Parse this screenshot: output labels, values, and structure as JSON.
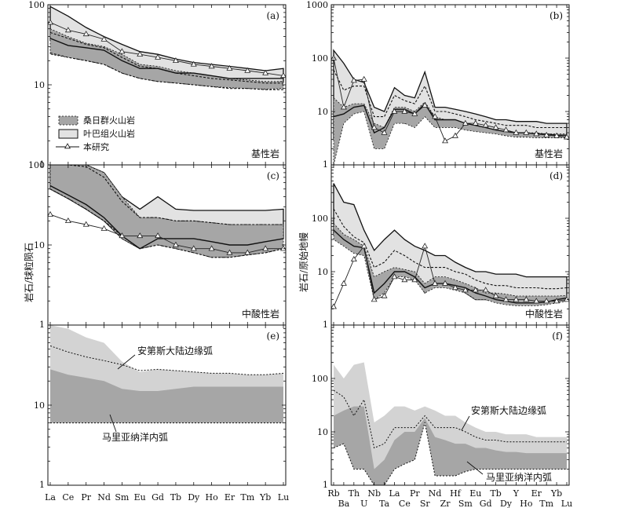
{
  "figure": {
    "y_axis_title_left": "岩石/球粒陨石",
    "y_axis_title_right": "岩石/原始地幔",
    "ree_elements": [
      "La",
      "Ce",
      "Pr",
      "Nd",
      "Sm",
      "Eu",
      "Gd",
      "Tb",
      "Dy",
      "Ho",
      "Er",
      "Tm",
      "Yb",
      "Lu"
    ],
    "spider_elements": [
      "Rb",
      "Ba",
      "Th",
      "U",
      "Nb",
      "Ta",
      "La",
      "Ce",
      "Pr",
      "Sr",
      "Nd",
      "Zr",
      "Hf",
      "Sm",
      "Eu",
      "Gd",
      "Tb",
      "Dy",
      "Y",
      "Ho",
      "Er",
      "Tm",
      "Yb",
      "Lu"
    ],
    "legend": {
      "sangri": "桑日群火山岩",
      "yeba": "叶巴组火山岩",
      "this_study": "本研究"
    },
    "colors": {
      "dark_field": "#a6a6a6",
      "light_field": "#e2e2e2",
      "line": "#111111"
    }
  },
  "chart_data": [
    {
      "panel": "(a)",
      "type": "line",
      "subtitle": "基性岩",
      "y_scale": "log",
      "ylim": [
        1,
        100
      ],
      "y_ticks": [
        "100",
        "10",
        "1"
      ],
      "yeba_band": {
        "upper": [
          95,
          72,
          52,
          40,
          32,
          26,
          24,
          21,
          19,
          18,
          17,
          16,
          15,
          16
        ],
        "lower": [
          36,
          30,
          26,
          23,
          17,
          15,
          14,
          13,
          12,
          12,
          11,
          11,
          10.5,
          11
        ]
      },
      "sangri_band": {
        "upper": [
          50,
          40,
          33,
          30,
          24,
          18,
          17,
          15,
          14,
          13,
          12,
          11.5,
          11,
          11
        ],
        "lower": [
          24,
          22,
          20,
          18,
          14,
          12,
          11,
          10.5,
          10,
          9.5,
          9.2,
          9,
          8.8,
          9
        ]
      },
      "sangri_dashed": [
        [
          45,
          38,
          32,
          29,
          22,
          17,
          16,
          14,
          13,
          12,
          11.5,
          11,
          10.5,
          10.5
        ],
        [
          25,
          22,
          20,
          18,
          14,
          12,
          11,
          10.5,
          10,
          9.5,
          9,
          9,
          8.7,
          8.7
        ]
      ],
      "yeba_solid": [
        [
          38,
          31,
          29,
          27,
          20,
          16,
          16,
          14,
          14,
          13,
          12,
          12,
          12,
          12
        ]
      ],
      "this_study": [
        60,
        48,
        43,
        37,
        26,
        24,
        22,
        20,
        18,
        17,
        16,
        15,
        14,
        13
      ]
    },
    {
      "panel": "(b)",
      "type": "line",
      "subtitle": "基性岩",
      "y_scale": "log",
      "ylim": [
        1,
        1000
      ],
      "y_ticks": [
        "1000",
        "100",
        "10",
        "1"
      ],
      "yeba_band": {
        "upper": [
          140,
          80,
          40,
          35,
          12,
          10,
          28,
          20,
          18,
          55,
          12,
          12,
          11,
          10,
          9,
          8,
          7,
          7,
          6.5,
          6.5,
          6.5,
          6,
          6,
          6
        ],
        "lower": [
          3,
          7,
          10,
          12,
          3,
          3.5,
          7,
          6,
          6,
          9,
          6,
          6,
          6,
          5.5,
          5,
          4.5,
          4.5,
          4,
          3.8,
          3.8,
          3.6,
          3.6,
          3.6,
          3.6
        ]
      },
      "sangri_band": {
        "upper": [
          18,
          12,
          14,
          14,
          6,
          5,
          12,
          12,
          10,
          15,
          8,
          7,
          7,
          6,
          5.5,
          5,
          4.5,
          4.3,
          4,
          4,
          4,
          3.8,
          3.8,
          3.8
        ],
        "lower": [
          1,
          6,
          9,
          10,
          2,
          2,
          6,
          6,
          5,
          8,
          5,
          5,
          5,
          4.5,
          4.2,
          4,
          3.8,
          3.5,
          3.3,
          3.3,
          3.2,
          3.2,
          3.2,
          3.2
        ]
      },
      "sangri_dashed": [
        [
          60,
          25,
          30,
          30,
          8,
          8,
          20,
          16,
          14,
          30,
          10,
          10,
          9,
          8,
          7,
          6.5,
          6,
          5.5,
          5.5,
          5.5,
          5,
          5,
          5,
          5
        ]
      ],
      "yeba_solid": [
        [
          8,
          9,
          12,
          13,
          4,
          5,
          11,
          11,
          9,
          14,
          7,
          7,
          7,
          6,
          5.5,
          5,
          4.5,
          4.2,
          4,
          4,
          3.8,
          3.8,
          3.6,
          3.6
        ]
      ],
      "this_study": [
        100,
        12,
        38,
        40,
        5,
        4,
        10,
        10,
        9,
        13,
        8,
        2.8,
        3.5,
        6,
        6,
        5.5,
        5,
        4.5,
        4,
        4,
        3.8,
        3.6,
        3.5,
        3.3
      ]
    },
    {
      "panel": "(c)",
      "type": "line",
      "subtitle": "中酸性岩",
      "y_scale": "log",
      "ylim": [
        1,
        100
      ],
      "y_ticks": [
        "100",
        "10",
        "1"
      ],
      "yeba_band": {
        "upper": [
          100,
          100,
          100,
          80,
          40,
          28,
          40,
          28,
          27,
          27,
          27,
          27,
          27,
          28
        ],
        "lower": [
          50,
          38,
          28,
          20,
          12,
          9,
          11,
          10,
          10,
          10,
          10,
          10,
          11,
          12
        ]
      },
      "sangri_band": {
        "upper": [
          100,
          100,
          100,
          80,
          40,
          22,
          22,
          20,
          20,
          19,
          18,
          18,
          18,
          18
        ],
        "lower": [
          50,
          38,
          28,
          20,
          12,
          9,
          10,
          9,
          8,
          7,
          7,
          7.5,
          8,
          9
        ]
      },
      "sangri_dashed": [
        [
          100,
          100,
          95,
          70,
          35,
          22,
          22,
          20,
          20,
          19,
          18,
          18,
          18,
          18
        ],
        [
          50,
          38,
          28,
          20,
          13,
          9,
          10,
          9,
          8,
          7,
          7,
          7.5,
          8,
          9
        ]
      ],
      "yeba_solid": [
        [
          55,
          42,
          32,
          22,
          13,
          9,
          12,
          12,
          12,
          11,
          10,
          10,
          11,
          12
        ]
      ],
      "this_study": [
        24,
        20,
        18,
        16,
        13,
        13,
        13,
        10,
        9,
        9,
        8,
        8,
        9,
        9
      ]
    },
    {
      "panel": "(d)",
      "type": "line",
      "subtitle": "中酸性岩",
      "y_scale": "log",
      "ylim": [
        1,
        1000
      ],
      "y_ticks": [
        "100",
        "10",
        "1"
      ],
      "yeba_band": {
        "upper": [
          450,
          200,
          180,
          60,
          25,
          40,
          60,
          40,
          30,
          25,
          20,
          20,
          15,
          12,
          10,
          10,
          9,
          9,
          9,
          8,
          8,
          8,
          8,
          8
        ],
        "lower": [
          50,
          35,
          25,
          25,
          4,
          6,
          10,
          10,
          8,
          4,
          6,
          6,
          5,
          4,
          3,
          3,
          2.8,
          2.6,
          2.5,
          2.5,
          2.5,
          2.6,
          2.8,
          3
        ]
      },
      "sangri_band": {
        "upper": [
          80,
          50,
          40,
          30,
          8,
          10,
          12,
          11,
          10,
          6,
          8,
          8,
          7,
          6,
          5,
          4,
          4,
          3.8,
          3.5,
          3.5,
          3.5,
          3.5,
          3.5,
          3.6
        ],
        "lower": [
          40,
          30,
          22,
          20,
          3,
          4,
          8,
          8,
          7,
          4,
          5,
          5,
          4.5,
          4,
          3,
          3,
          2.6,
          2.4,
          2.3,
          2.3,
          2.3,
          2.4,
          2.6,
          2.8
        ]
      },
      "sangri_dashed": [
        [
          150,
          70,
          45,
          35,
          12,
          15,
          25,
          20,
          15,
          12,
          12,
          12,
          10,
          9,
          7,
          6,
          5.5,
          5.5,
          5,
          5,
          5,
          4.8,
          4.8,
          5
        ]
      ],
      "yeba_solid": [
        [
          60,
          40,
          30,
          28,
          4,
          6,
          10,
          10,
          8,
          5,
          6,
          6,
          5.5,
          5,
          4,
          3.5,
          3,
          2.8,
          2.6,
          2.6,
          2.6,
          2.7,
          3,
          3.2
        ]
      ],
      "this_study": [
        2.2,
        6,
        17,
        30,
        3,
        3.5,
        8,
        7,
        7,
        30,
        6,
        6,
        5,
        4.5,
        4.5,
        4.5,
        3.5,
        3,
        3,
        3,
        2.8,
        2.8,
        2.8,
        3
      ]
    },
    {
      "panel": "(e)",
      "type": "area",
      "y_scale": "log",
      "ylim": [
        1,
        100
      ],
      "y_ticks": [
        "10",
        "1"
      ],
      "labels": {
        "andes": "安第斯大陆边缘弧",
        "mariana": "马里亚纳洋内弧"
      },
      "andes_band": {
        "upper": [
          100,
          90,
          70,
          60,
          35,
          26,
          28,
          27,
          26,
          25,
          25,
          24,
          24,
          25
        ],
        "lower": [
          6,
          6,
          6.5,
          7,
          8,
          8,
          8,
          8,
          7.5,
          7.5,
          7,
          7,
          6.8,
          6.8
        ]
      },
      "andes_dashed": [
        55,
        46,
        40,
        36,
        32,
        27,
        28,
        27,
        26,
        25,
        25,
        24,
        24,
        25
      ],
      "mariana_band": {
        "upper": [
          28,
          24,
          22,
          20,
          16,
          15,
          15,
          16,
          17,
          17,
          17,
          17,
          17,
          17
        ],
        "lower": [
          6,
          6,
          6,
          6,
          6,
          6,
          6,
          6,
          6,
          6,
          6,
          6,
          6,
          6
        ]
      }
    },
    {
      "panel": "(f)",
      "type": "area",
      "y_scale": "log",
      "ylim": [
        1,
        1000
      ],
      "y_ticks": [
        "100",
        "10",
        "1"
      ],
      "labels": {
        "andes": "安第斯大陆边缘弧",
        "mariana": "马里亚纳洋内弧"
      },
      "andes_band": {
        "upper": [
          180,
          100,
          180,
          200,
          15,
          20,
          30,
          30,
          25,
          30,
          25,
          20,
          20,
          15,
          12,
          10,
          10,
          9,
          9,
          9,
          8,
          8,
          8,
          8
        ],
        "lower": [
          5,
          10,
          4,
          10,
          1.2,
          1.5,
          3,
          5,
          5,
          15,
          3,
          3,
          3,
          3,
          3,
          3,
          2.8,
          2.6,
          2.5,
          2.4,
          2.3,
          2.2,
          2.2,
          2.2
        ]
      },
      "andes_dashed": [
        60,
        45,
        20,
        40,
        5,
        6,
        12,
        12,
        12,
        20,
        12,
        12,
        12,
        10,
        8,
        7,
        7,
        6.5,
        6.5,
        6.5,
        6.5,
        6.5,
        6.5,
        6.5
      ],
      "mariana_band": {
        "upper": [
          20,
          25,
          30,
          30,
          2,
          3,
          7,
          10,
          10,
          18,
          8,
          7,
          6,
          6,
          5,
          5,
          4.5,
          4.2,
          4.2,
          4,
          4,
          4,
          4,
          4
        ],
        "lower": [
          5,
          6,
          2,
          2,
          1,
          1,
          2,
          2.5,
          3,
          15,
          1.5,
          1.5,
          1.5,
          1.8,
          2,
          2,
          2,
          2,
          2,
          2,
          2,
          2,
          2,
          2
        ]
      }
    }
  ]
}
